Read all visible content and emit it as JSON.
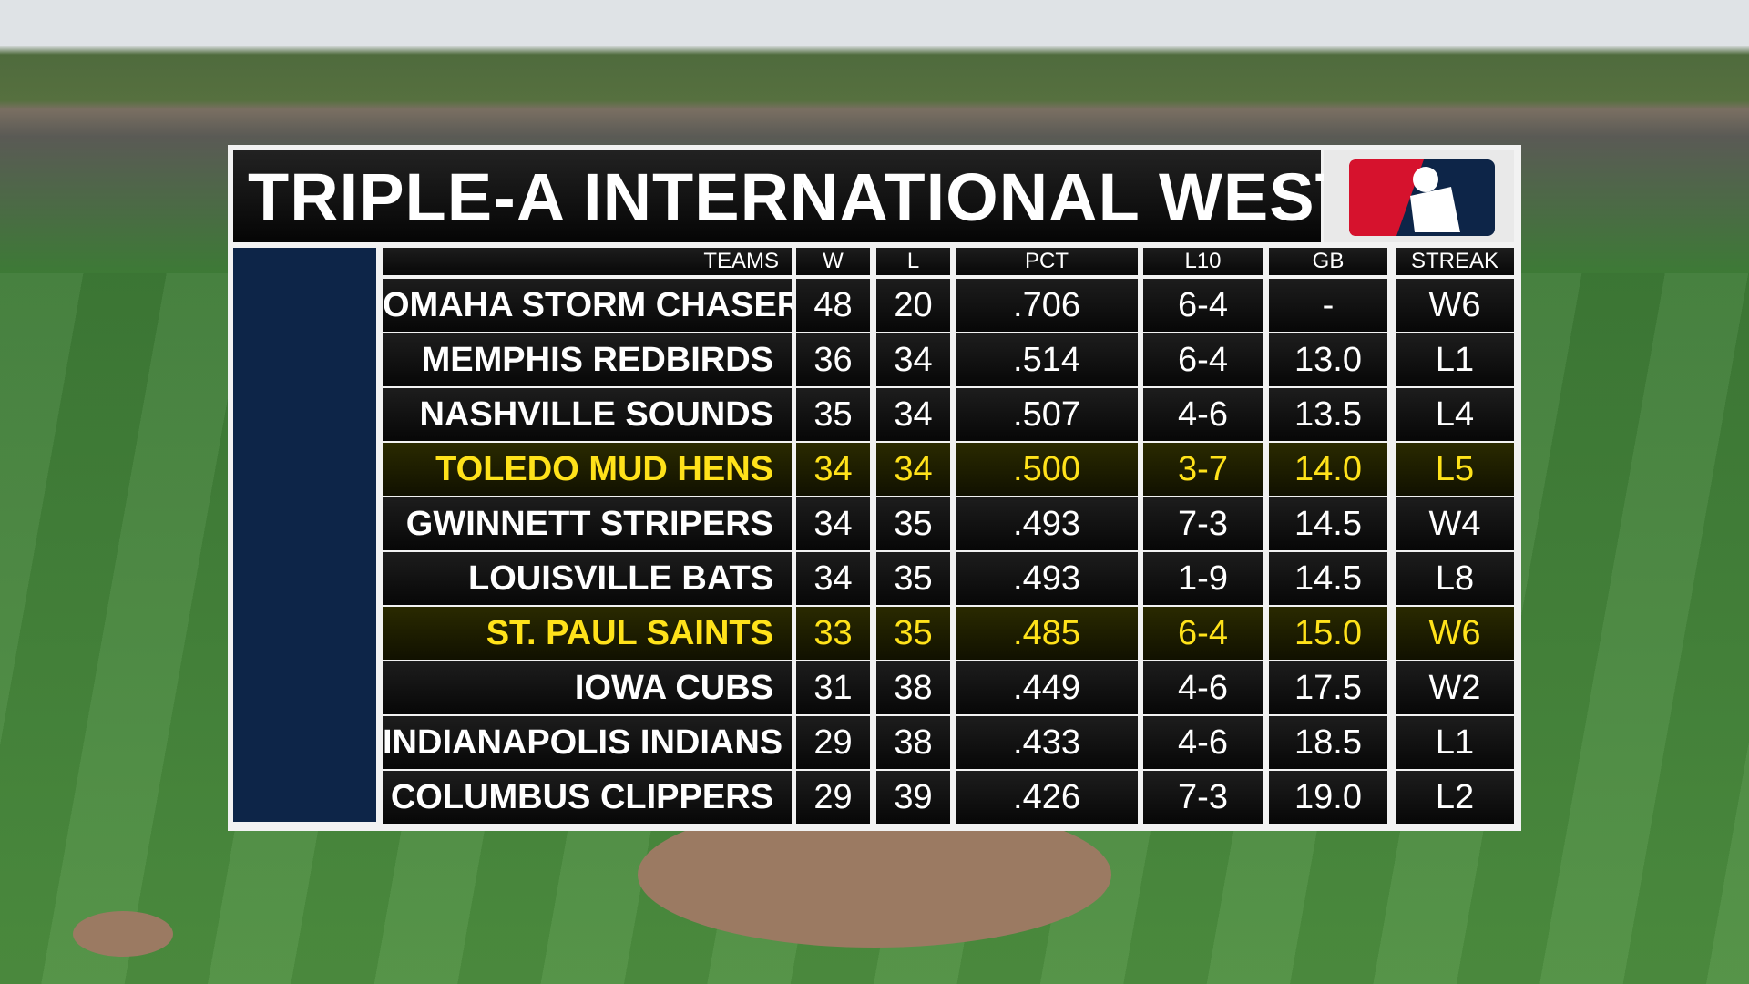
{
  "header": {
    "title": "TRIPLE-A INTERNATIONAL WEST"
  },
  "table": {
    "columns": [
      "TEAMS",
      "W",
      "L",
      "PCT",
      "L10",
      "GB",
      "STREAK"
    ],
    "rows": [
      [
        "OMAHA STORM CHASERS",
        "48",
        "20",
        ".706",
        "6-4",
        "-",
        "W6"
      ],
      [
        "MEMPHIS REDBIRDS",
        "36",
        "34",
        ".514",
        "6-4",
        "13.0",
        "L1"
      ],
      [
        "NASHVILLE SOUNDS",
        "35",
        "34",
        ".507",
        "4-6",
        "13.5",
        "L4"
      ],
      [
        "TOLEDO MUD HENS",
        "34",
        "34",
        ".500",
        "3-7",
        "14.0",
        "L5"
      ],
      [
        "GWINNETT STRIPERS",
        "34",
        "35",
        ".493",
        "7-3",
        "14.5",
        "W4"
      ],
      [
        "LOUISVILLE BATS",
        "34",
        "35",
        ".493",
        "1-9",
        "14.5",
        "L8"
      ],
      [
        "ST. PAUL SAINTS",
        "33",
        "35",
        ".485",
        "6-4",
        "15.0",
        "W6"
      ],
      [
        "IOWA CUBS",
        "31",
        "38",
        ".449",
        "4-6",
        "17.5",
        "W2"
      ],
      [
        "INDIANAPOLIS INDIANS",
        "29",
        "38",
        ".433",
        "4-6",
        "18.5",
        "L1"
      ],
      [
        "COLUMBUS CLIPPERS",
        "29",
        "39",
        ".426",
        "7-3",
        "19.0",
        "L2"
      ]
    ],
    "highlighted_rows": [
      3,
      6
    ]
  }
}
